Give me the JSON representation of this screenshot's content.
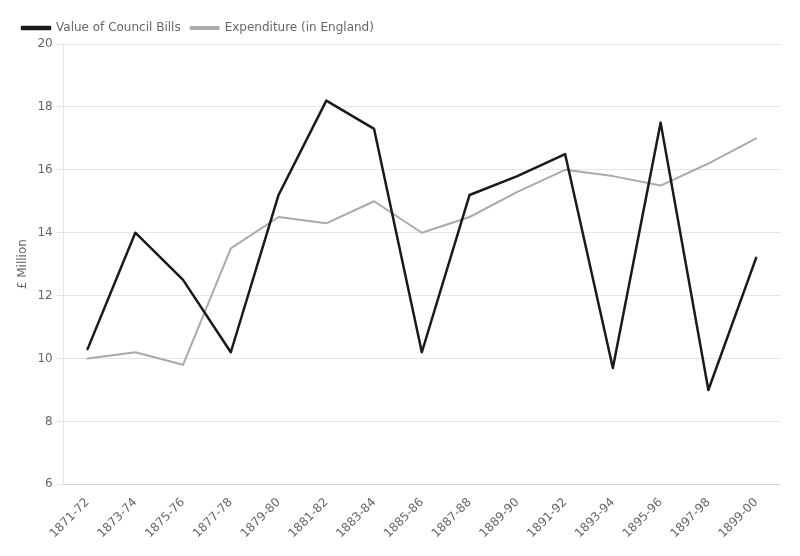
{
  "chart_data": {
    "type": "line",
    "categories": [
      "1871-72",
      "1873-74",
      "1875-76",
      "1877-78",
      "1879-80",
      "1881-82",
      "1883-84",
      "1885-86",
      "1887-88",
      "1889-90",
      "1891-92",
      "1893-94",
      "1895-96",
      "1897-98",
      "1899-00"
    ],
    "series": [
      {
        "name": "Value of Council Bills",
        "color": "#1a1a1a",
        "values": [
          10.3,
          14.0,
          12.5,
          10.2,
          15.2,
          18.2,
          17.3,
          10.2,
          15.2,
          15.8,
          16.5,
          9.7,
          17.5,
          9.0,
          13.2
        ]
      },
      {
        "name": "Expenditure (in England)",
        "color": "#aaaaaa",
        "values": [
          10.0,
          10.2,
          9.8,
          13.5,
          14.5,
          14.3,
          15.0,
          14.0,
          14.5,
          15.3,
          16.0,
          15.8,
          15.5,
          16.2,
          17.0
        ]
      }
    ],
    "y_label": "£ Million",
    "ylim": [
      6,
      20
    ],
    "yticks": [
      6,
      8,
      10,
      12,
      14,
      16,
      18,
      20
    ],
    "grid": true,
    "legend": "upper left"
  }
}
